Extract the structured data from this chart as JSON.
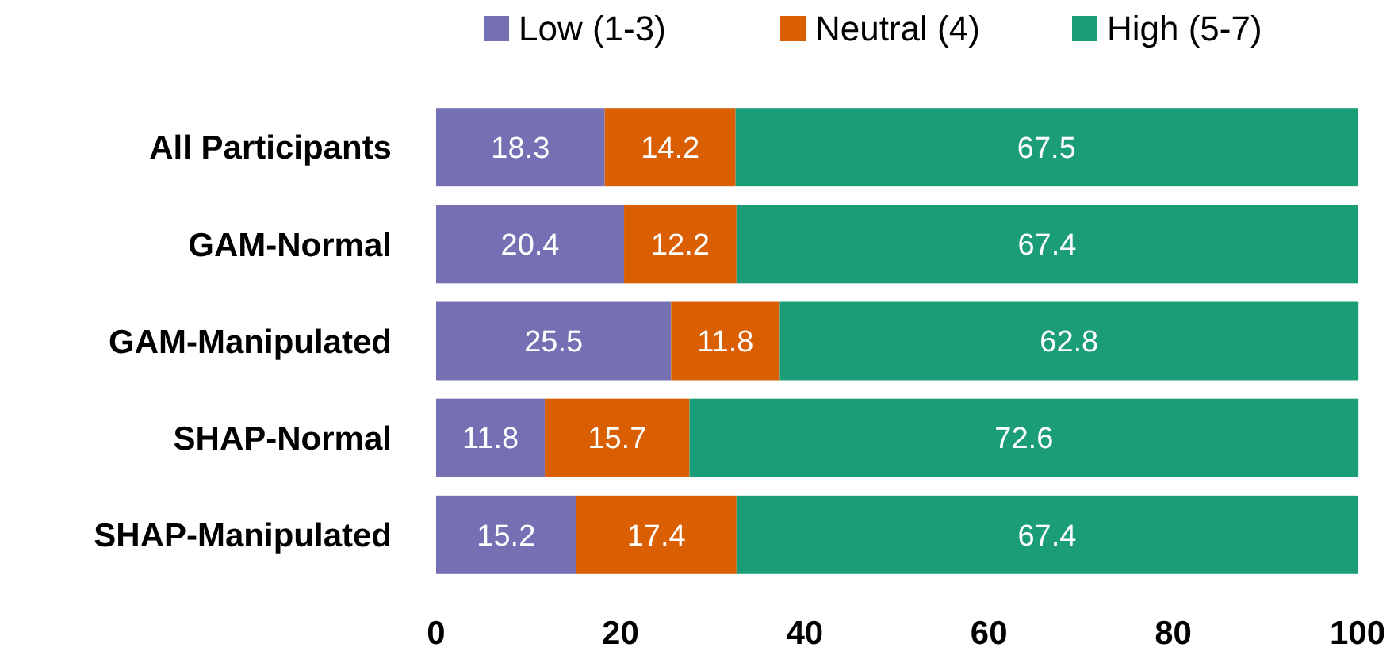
{
  "chart_data": {
    "type": "bar",
    "orientation": "horizontal",
    "stacked": true,
    "categories": [
      "All Participants",
      "GAM-Normal",
      "GAM-Manipulated",
      "SHAP-Normal",
      "SHAP-Manipulated"
    ],
    "series": [
      {
        "name": "Low (1-3)",
        "color": "#7570b3",
        "values": [
          18.3,
          20.4,
          25.5,
          11.8,
          15.2
        ]
      },
      {
        "name": "Neutral (4)",
        "color": "#d95f02",
        "values": [
          14.2,
          12.2,
          11.8,
          15.7,
          17.4
        ]
      },
      {
        "name": "High (5-7)",
        "color": "#1b9e77",
        "values": [
          67.5,
          67.4,
          62.8,
          72.6,
          67.4
        ]
      }
    ],
    "xlim": [
      0,
      100
    ],
    "xticks": [
      0,
      20,
      40,
      60,
      80,
      100
    ],
    "data_labels": true,
    "legend": "top",
    "grid": false
  }
}
